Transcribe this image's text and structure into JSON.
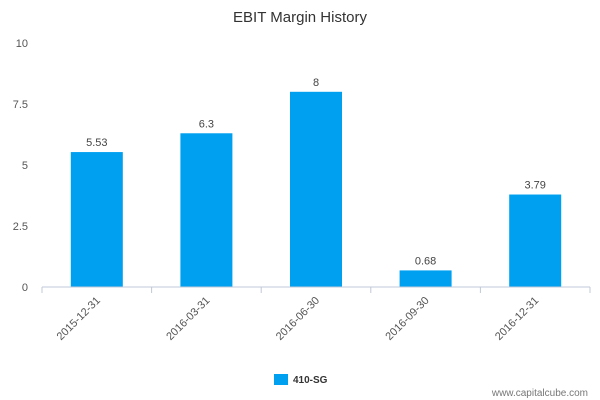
{
  "chart_data": {
    "type": "bar",
    "title": "EBIT Margin History",
    "categories": [
      "2015-12-31",
      "2016-03-31",
      "2016-06-30",
      "2016-09-30",
      "2016-12-31"
    ],
    "series": [
      {
        "name": "410-SG",
        "values": [
          5.53,
          6.3,
          8,
          0.68,
          3.79
        ],
        "color": "#00a0f0"
      }
    ],
    "data_labels": [
      "5.53",
      "6.3",
      "8",
      "0.68",
      "3.79"
    ],
    "yticks": [
      "0",
      "2.5",
      "5",
      "7.5",
      "10"
    ],
    "ylim": [
      0,
      10
    ],
    "xlabel": "",
    "ylabel": "",
    "grid": false,
    "legend": "bottom-center"
  },
  "watermark": "www.capitalcube.com"
}
